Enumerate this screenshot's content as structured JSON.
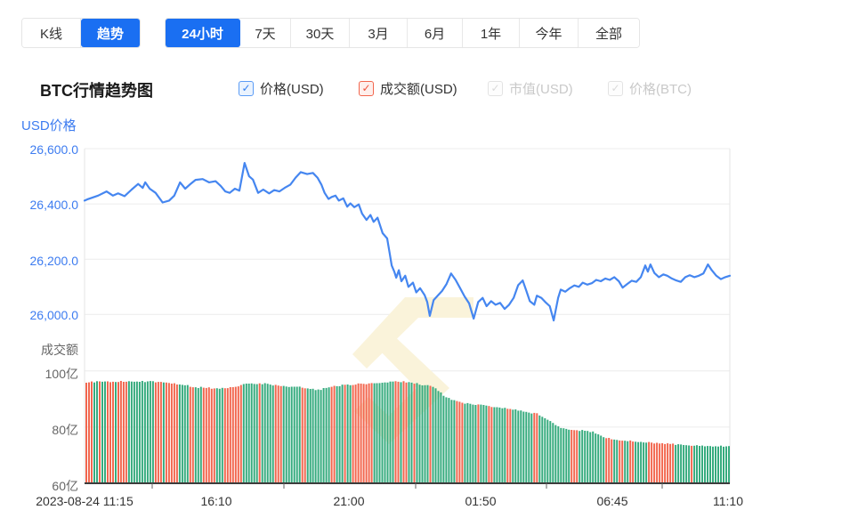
{
  "tabs": {
    "chart_type": [
      {
        "label": "K线",
        "selected": false
      },
      {
        "label": "趋势",
        "selected": true
      }
    ],
    "time_ranges": [
      {
        "label": "24小时",
        "selected": true
      },
      {
        "label": "7天",
        "selected": false
      },
      {
        "label": "30天",
        "selected": false
      },
      {
        "label": "3月",
        "selected": false
      },
      {
        "label": "6月",
        "selected": false
      },
      {
        "label": "1年",
        "selected": false
      },
      {
        "label": "今年",
        "selected": false
      },
      {
        "label": "全部",
        "selected": false
      }
    ]
  },
  "legend": {
    "title": "BTC行情趋势图",
    "check_glyph": "✓",
    "checkboxes": [
      {
        "label": "价格(USD)",
        "checked": true,
        "style": "blue"
      },
      {
        "label": "成交额(USD)",
        "checked": true,
        "style": "red"
      },
      {
        "label": "市值(USD)",
        "checked": true,
        "style": "disabled"
      },
      {
        "label": "价格(BTC)",
        "checked": true,
        "style": "disabled"
      }
    ]
  },
  "chart_data": {
    "type": "line+bar",
    "title": "BTC行情趋势图",
    "grid": true,
    "price_axis": {
      "title": "USD价格",
      "ticks": [
        "26,600.0",
        "26,400.0",
        "26,200.0",
        "26,000.0"
      ],
      "tick_values": [
        26600,
        26400,
        26200,
        26000
      ],
      "color": "#3d7cf0"
    },
    "volume_axis": {
      "title": "成交额",
      "ticks": [
        "100亿",
        "80亿",
        "60亿"
      ],
      "tick_values": [
        100,
        80,
        60
      ],
      "unit": "亿"
    },
    "x_axis": {
      "labels": [
        "2023-08-24 11:15",
        "16:10",
        "21:00",
        "01:50",
        "06:45",
        "11:10"
      ],
      "start": "2023-08-24 11:15",
      "end": "2023-08-25 11:10"
    },
    "price_series": {
      "name": "价格(USD)",
      "color": "#4586f0",
      "points": [
        [
          0.0,
          26412
        ],
        [
          0.004,
          26416
        ],
        [
          0.021,
          26430
        ],
        [
          0.034,
          26445
        ],
        [
          0.044,
          26430
        ],
        [
          0.052,
          26438
        ],
        [
          0.062,
          26428
        ],
        [
          0.073,
          26452
        ],
        [
          0.083,
          26472
        ],
        [
          0.09,
          26458
        ],
        [
          0.094,
          26478
        ],
        [
          0.101,
          26455
        ],
        [
          0.11,
          26440
        ],
        [
          0.121,
          26405
        ],
        [
          0.131,
          26412
        ],
        [
          0.139,
          26430
        ],
        [
          0.148,
          26478
        ],
        [
          0.156,
          26455
        ],
        [
          0.163,
          26470
        ],
        [
          0.172,
          26487
        ],
        [
          0.183,
          26490
        ],
        [
          0.193,
          26478
        ],
        [
          0.203,
          26482
        ],
        [
          0.211,
          26465
        ],
        [
          0.218,
          26445
        ],
        [
          0.225,
          26440
        ],
        [
          0.233,
          26455
        ],
        [
          0.24,
          26448
        ],
        [
          0.248,
          26548
        ],
        [
          0.255,
          26500
        ],
        [
          0.261,
          26488
        ],
        [
          0.269,
          26440
        ],
        [
          0.277,
          26452
        ],
        [
          0.286,
          26438
        ],
        [
          0.294,
          26450
        ],
        [
          0.302,
          26445
        ],
        [
          0.31,
          26458
        ],
        [
          0.319,
          26470
        ],
        [
          0.327,
          26495
        ],
        [
          0.335,
          26515
        ],
        [
          0.345,
          26508
        ],
        [
          0.354,
          26512
        ],
        [
          0.361,
          26495
        ],
        [
          0.367,
          26470
        ],
        [
          0.372,
          26440
        ],
        [
          0.378,
          26418
        ],
        [
          0.383,
          26425
        ],
        [
          0.389,
          26430
        ],
        [
          0.394,
          26412
        ],
        [
          0.401,
          26420
        ],
        [
          0.407,
          26390
        ],
        [
          0.412,
          26402
        ],
        [
          0.418,
          26388
        ],
        [
          0.425,
          26398
        ],
        [
          0.43,
          26365
        ],
        [
          0.437,
          26342
        ],
        [
          0.443,
          26360
        ],
        [
          0.448,
          26335
        ],
        [
          0.454,
          26350
        ],
        [
          0.462,
          26294
        ],
        [
          0.469,
          26275
        ],
        [
          0.473,
          26220
        ],
        [
          0.476,
          26177
        ],
        [
          0.48,
          26155
        ],
        [
          0.483,
          26133
        ],
        [
          0.487,
          26160
        ],
        [
          0.491,
          26120
        ],
        [
          0.497,
          26140
        ],
        [
          0.502,
          26100
        ],
        [
          0.509,
          26115
        ],
        [
          0.514,
          26080
        ],
        [
          0.52,
          26095
        ],
        [
          0.527,
          26070
        ],
        [
          0.531,
          26045
        ],
        [
          0.535,
          25995
        ],
        [
          0.541,
          26052
        ],
        [
          0.548,
          26070
        ],
        [
          0.554,
          26085
        ],
        [
          0.561,
          26110
        ],
        [
          0.568,
          26148
        ],
        [
          0.575,
          26125
        ],
        [
          0.582,
          26095
        ],
        [
          0.589,
          26065
        ],
        [
          0.596,
          26040
        ],
        [
          0.603,
          25985
        ],
        [
          0.61,
          26045
        ],
        [
          0.617,
          26060
        ],
        [
          0.623,
          26030
        ],
        [
          0.63,
          26048
        ],
        [
          0.637,
          26035
        ],
        [
          0.644,
          26042
        ],
        [
          0.651,
          26020
        ],
        [
          0.658,
          26035
        ],
        [
          0.665,
          26060
        ],
        [
          0.672,
          26106
        ],
        [
          0.679,
          26123
        ],
        [
          0.684,
          26090
        ],
        [
          0.69,
          26048
        ],
        [
          0.697,
          26035
        ],
        [
          0.701,
          26068
        ],
        [
          0.708,
          26060
        ],
        [
          0.714,
          26045
        ],
        [
          0.721,
          26030
        ],
        [
          0.727,
          25978
        ],
        [
          0.734,
          26060
        ],
        [
          0.738,
          26090
        ],
        [
          0.745,
          26082
        ],
        [
          0.752,
          26095
        ],
        [
          0.759,
          26105
        ],
        [
          0.766,
          26100
        ],
        [
          0.772,
          26115
        ],
        [
          0.779,
          26108
        ],
        [
          0.786,
          26113
        ],
        [
          0.793,
          26125
        ],
        [
          0.8,
          26120
        ],
        [
          0.807,
          26130
        ],
        [
          0.814,
          26125
        ],
        [
          0.821,
          26135
        ],
        [
          0.828,
          26120
        ],
        [
          0.834,
          26097
        ],
        [
          0.841,
          26110
        ],
        [
          0.848,
          26122
        ],
        [
          0.855,
          26118
        ],
        [
          0.862,
          26135
        ],
        [
          0.869,
          26177
        ],
        [
          0.873,
          26155
        ],
        [
          0.877,
          26181
        ],
        [
          0.883,
          26150
        ],
        [
          0.89,
          26135
        ],
        [
          0.897,
          26145
        ],
        [
          0.903,
          26140
        ],
        [
          0.91,
          26130
        ],
        [
          0.917,
          26123
        ],
        [
          0.924,
          26118
        ],
        [
          0.931,
          26135
        ],
        [
          0.938,
          26142
        ],
        [
          0.945,
          26135
        ],
        [
          0.952,
          26140
        ],
        [
          0.959,
          26148
        ],
        [
          0.966,
          26181
        ],
        [
          0.972,
          26160
        ],
        [
          0.979,
          26140
        ],
        [
          0.986,
          26128
        ],
        [
          0.993,
          26135
        ],
        [
          1.0,
          26140
        ]
      ]
    },
    "volume_series": {
      "name": "成交额(USD)",
      "unit": "亿",
      "bar_count": 242,
      "colors": {
        "red": "#f2674f",
        "green": "#36ab7e"
      },
      "envelope": [
        [
          0.0,
          96.0
        ],
        [
          0.04,
          96.2
        ],
        [
          0.08,
          96.3
        ],
        [
          0.12,
          96.0
        ],
        [
          0.15,
          95.1
        ],
        [
          0.17,
          94.2
        ],
        [
          0.2,
          93.8
        ],
        [
          0.23,
          94.0
        ],
        [
          0.25,
          95.6
        ],
        [
          0.28,
          95.4
        ],
        [
          0.3,
          94.6
        ],
        [
          0.33,
          94.3
        ],
        [
          0.36,
          93.2
        ],
        [
          0.38,
          94.2
        ],
        [
          0.4,
          95.0
        ],
        [
          0.43,
          95.4
        ],
        [
          0.46,
          95.8
        ],
        [
          0.48,
          96.3
        ],
        [
          0.5,
          96.0
        ],
        [
          0.52,
          95.2
        ],
        [
          0.54,
          94.5
        ],
        [
          0.555,
          91.5
        ],
        [
          0.57,
          89.5
        ],
        [
          0.59,
          88.5
        ],
        [
          0.61,
          88.0
        ],
        [
          0.63,
          87.3
        ],
        [
          0.65,
          86.8
        ],
        [
          0.67,
          86.2
        ],
        [
          0.685,
          85.2
        ],
        [
          0.7,
          84.9
        ],
        [
          0.715,
          83.0
        ],
        [
          0.73,
          80.8
        ],
        [
          0.745,
          79.2
        ],
        [
          0.77,
          78.8
        ],
        [
          0.79,
          78.2
        ],
        [
          0.805,
          76.4
        ],
        [
          0.82,
          75.6
        ],
        [
          0.85,
          74.9
        ],
        [
          0.88,
          74.4
        ],
        [
          0.91,
          74.0
        ],
        [
          0.94,
          73.5
        ],
        [
          0.97,
          73.2
        ],
        [
          1.0,
          73.3
        ]
      ]
    },
    "watermark_color": "#faf3da",
    "grid_color": "#ececec",
    "axis_color": "#3c3c3c"
  }
}
